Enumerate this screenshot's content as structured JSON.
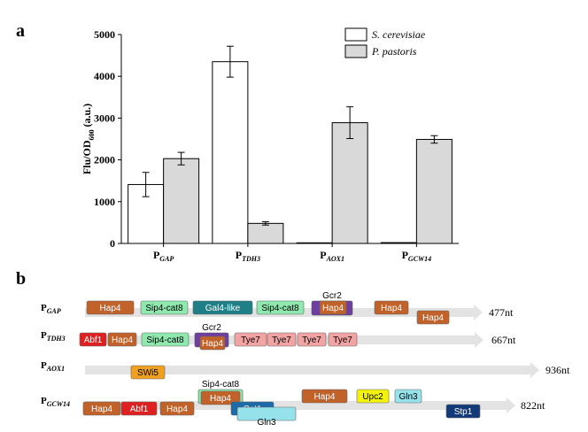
{
  "panel_a_label": "a",
  "panel_b_label": "b",
  "chart_data": {
    "type": "bar",
    "ylabel_main": "Flu/OD",
    "ylabel_sub": "600",
    "ylabel_tail": " (a.u.)",
    "ylim": [
      0,
      5000
    ],
    "yticks": [
      0,
      1000,
      2000,
      3000,
      4000,
      5000
    ],
    "categories": [
      {
        "main": "P",
        "sub": "GAP"
      },
      {
        "main": "P",
        "sub": "TDH3"
      },
      {
        "main": "P",
        "sub": "AOX1"
      },
      {
        "main": "P",
        "sub": "GCW14"
      }
    ],
    "series": [
      {
        "name": "S. cerevisiae",
        "color": "#ffffff",
        "values": [
          1410,
          4350,
          15,
          20
        ],
        "errors": [
          290,
          370,
          0,
          0
        ]
      },
      {
        "name": "P. pastoris",
        "color": "#d9d9d9",
        "values": [
          2030,
          480,
          2890,
          2490
        ],
        "errors": [
          150,
          40,
          380,
          90
        ]
      }
    ],
    "legend_position": "top-right"
  },
  "promoter_map": {
    "tracks": [
      {
        "name": "P",
        "sub": "GAP",
        "length_label": "477nt",
        "elements": [
          {
            "label": "Hap4",
            "type": "hap4"
          },
          {
            "label": "Sip4-cat8",
            "type": "sip4"
          },
          {
            "label": "Gal4-like",
            "type": "gal4"
          },
          {
            "label": "Sip4-cat8",
            "type": "sip4"
          },
          {
            "label": "Gcr2",
            "type": "gcr2"
          },
          {
            "label": "Hap4",
            "type": "hap4"
          },
          {
            "label": "Hap4",
            "type": "hap4"
          },
          {
            "label": "Hap4",
            "type": "hap4"
          }
        ]
      },
      {
        "name": "P",
        "sub": "TDH3",
        "length_label": "667nt",
        "elements": [
          {
            "label": "Abf1",
            "type": "abf1"
          },
          {
            "label": "Hap4",
            "type": "hap4"
          },
          {
            "label": "Sip4-cat8",
            "type": "sip4"
          },
          {
            "label": "Gcr2",
            "type": "gcr2"
          },
          {
            "label": "Hap4",
            "type": "hap4"
          },
          {
            "label": "Tye7",
            "type": "tye7"
          },
          {
            "label": "Tye7",
            "type": "tye7"
          },
          {
            "label": "Tye7",
            "type": "tye7"
          },
          {
            "label": "Tye7",
            "type": "tye7"
          }
        ]
      },
      {
        "name": "P",
        "sub": "AOX1",
        "length_label": "936nt",
        "elements": [
          {
            "label": "SWi5",
            "type": "swi5"
          }
        ]
      },
      {
        "name": "P",
        "sub": "GCW14",
        "length_label": "822nt",
        "elements": [
          {
            "label": "Hap4",
            "type": "hap4"
          },
          {
            "label": "Abf1",
            "type": "abf1"
          },
          {
            "label": "Hap4",
            "type": "hap4"
          },
          {
            "label": "Sip4-cat8",
            "type": "sip4"
          },
          {
            "label": "Hap4",
            "type": "hap4"
          },
          {
            "label": "Cat1",
            "type": "cat1"
          },
          {
            "label": "Gln3",
            "type": "gln3"
          },
          {
            "label": "Hap4",
            "type": "hap4"
          },
          {
            "label": "Upc2",
            "type": "upc2"
          },
          {
            "label": "Gln3",
            "type": "gln3"
          },
          {
            "label": "Stp1",
            "type": "stp1"
          }
        ]
      }
    ],
    "colors": {
      "hap4": "#c0622a",
      "sip4": "#8fe8ae",
      "gal4": "#1f7f86",
      "gcr2": "#6e3fa0",
      "abf1": "#e02020",
      "tye7": "#f2a3a3",
      "swi5": "#f0a020",
      "cat1": "#1d6aa8",
      "gln3": "#96e2ea",
      "upc2": "#f2f20c",
      "stp1": "#123a78"
    }
  }
}
